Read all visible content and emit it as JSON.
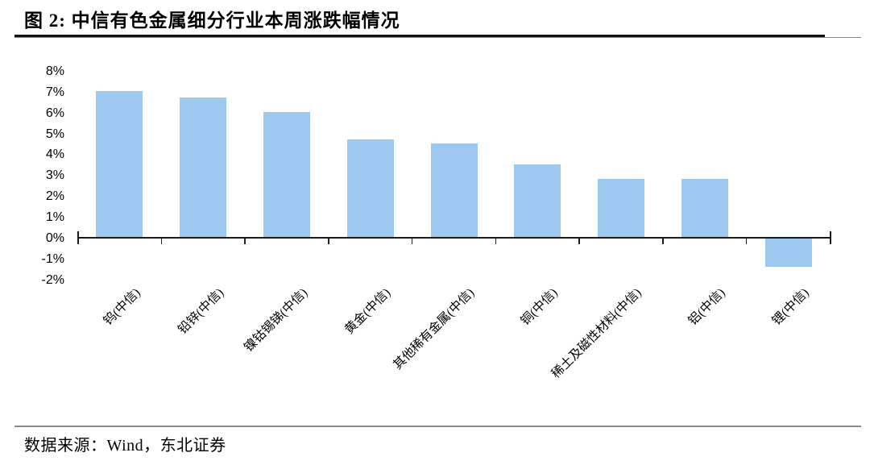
{
  "header": {
    "title": "图 2:  中信有色金属细分行业本周涨跌幅情况"
  },
  "footer": {
    "source": "数据来源：Wind，东北证券"
  },
  "chart_data": {
    "type": "bar",
    "title": "中信有色金属细分行业本周涨跌幅情况",
    "categories": [
      "钨(中信)",
      "铅锌(中信)",
      "镍钴锡锑(中信)",
      "黄金(中信)",
      "其他稀有金属(中信)",
      "铜(中信)",
      "稀土及磁性材料(中信)",
      "铝(中信)",
      "锂(中信)"
    ],
    "values": [
      7.0,
      6.7,
      6.0,
      4.7,
      4.5,
      3.5,
      2.8,
      2.8,
      -1.4
    ],
    "unit": "%",
    "xlabel": "",
    "ylabel": "",
    "ylim": [
      -2,
      8
    ],
    "ytick_step": 1,
    "ytick_labels": [
      "8%",
      "7%",
      "6%",
      "5%",
      "4%",
      "3%",
      "2%",
      "1%",
      "0%",
      "-1%",
      "-2%"
    ],
    "grid": false,
    "legend": "none",
    "bar_color": "#9DC9F0",
    "axis_color": "#1c1c1c",
    "text_color": "#000000"
  }
}
